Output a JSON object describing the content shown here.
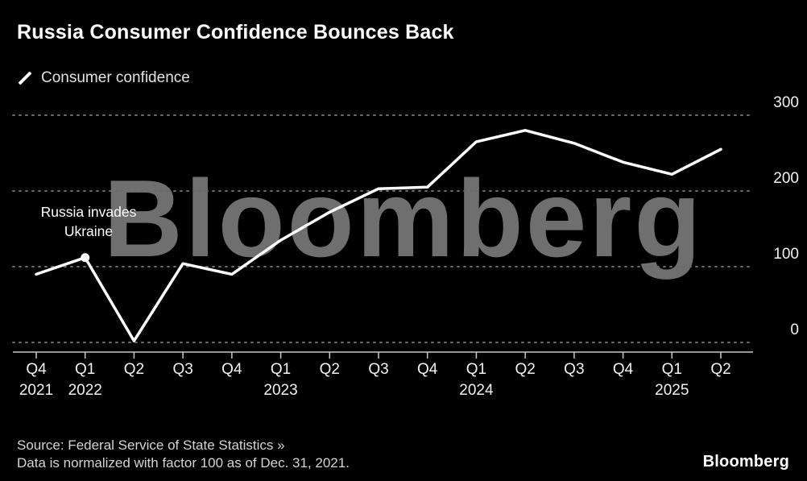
{
  "title": "Russia Consumer Confidence Bounces Back",
  "legend": {
    "label": "Consumer confidence"
  },
  "watermark": "Bloomberg",
  "annotation": {
    "line1": "Russia invades",
    "line2": "Ukraine"
  },
  "footer": {
    "source": "Source: Federal Service of State Statistics »",
    "note": "Data is normalized with factor 100 as of Dec. 31, 2021.",
    "logo": "Bloomberg"
  },
  "colors": {
    "background": "#000000",
    "line": "#ffffff",
    "grid": "#6a6a6a",
    "axis": "#c8c8c8",
    "text": "#ffffff",
    "muted": "#d6d6d6",
    "watermark": "#6f6f6f"
  },
  "chart_data": {
    "type": "line",
    "title": "Russia Consumer Confidence Bounces Back",
    "x": [
      "Q4 2021",
      "Q1 2022",
      "Q2 2022",
      "Q3 2022",
      "Q4 2022",
      "Q1 2023",
      "Q2 2023",
      "Q3 2023",
      "Q4 2023",
      "Q1 2024",
      "Q2 2024",
      "Q3 2024",
      "Q4 2024",
      "Q1 2025",
      "Q2 2025"
    ],
    "x_tick_quarters": [
      "Q4",
      "Q1",
      "Q2",
      "Q3",
      "Q4",
      "Q1",
      "Q2",
      "Q3",
      "Q4",
      "Q1",
      "Q2",
      "Q3",
      "Q4",
      "Q1",
      "Q2"
    ],
    "x_tick_years": {
      "0": "2021",
      "1": "2022",
      "5": "2023",
      "9": "2024",
      "13": "2025"
    },
    "series": [
      {
        "name": "Consumer confidence",
        "values": [
          90,
          112,
          2,
          104,
          90,
          135,
          172,
          203,
          205,
          265,
          280,
          263,
          238,
          222,
          255
        ]
      }
    ],
    "yticks": [
      0,
      100,
      200,
      300
    ],
    "ylim": [
      0,
      300
    ],
    "grid": "horizontal-dotted",
    "legend_position": "top-left",
    "annotation_index": 1,
    "annotation_text": "Russia invades Ukraine"
  }
}
